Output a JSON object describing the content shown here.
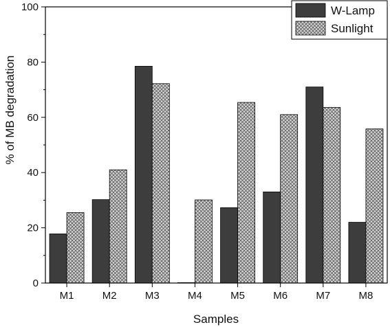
{
  "chart_data": {
    "type": "bar",
    "title": "",
    "xlabel": "Samples",
    "ylabel": "% of MB degradation",
    "ylim": [
      0,
      100
    ],
    "yticks": [
      0,
      20,
      40,
      60,
      80,
      100
    ],
    "categories": [
      "M1",
      "M2",
      "M3",
      "M4",
      "M5",
      "M6",
      "M7",
      "M8"
    ],
    "series": [
      {
        "name": "W-Lamp",
        "color": "#3d3d3d",
        "pattern": "solid",
        "values": [
          17.8,
          30.2,
          78.5,
          0.0,
          27.3,
          33.0,
          71.0,
          22.0
        ]
      },
      {
        "name": "Sunlight",
        "color": "#c8c8c8",
        "pattern": "crosshatch",
        "values": [
          25.5,
          41.0,
          72.2,
          30.1,
          65.4,
          61.0,
          63.6,
          55.8
        ]
      }
    ],
    "grid": false,
    "legend_position": "top-right"
  }
}
